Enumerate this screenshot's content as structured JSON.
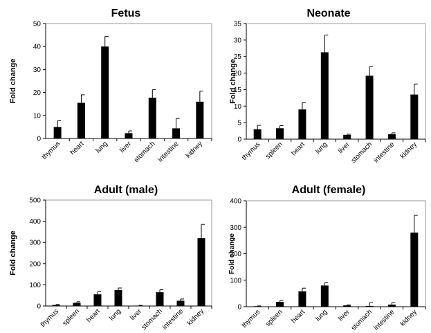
{
  "chart_data": [
    {
      "type": "bar",
      "title": "Fetus",
      "ylabel": "Fold change",
      "ylim": [
        0,
        50
      ],
      "yticks": [
        0,
        10,
        20,
        30,
        40,
        50
      ],
      "categories": [
        "thymus",
        "heart",
        "lung",
        "liver",
        "stomach",
        "intestine",
        "kidney"
      ],
      "values": [
        5,
        15.5,
        40,
        2.3,
        17.7,
        4.4,
        16
      ],
      "errors": [
        2.7,
        3.5,
        4.4,
        1,
        3.5,
        4.3,
        4.6
      ]
    },
    {
      "type": "bar",
      "title": "Neonate",
      "ylabel": "Fold change",
      "ylim": [
        0,
        35
      ],
      "yticks": [
        0,
        5,
        10,
        15,
        20,
        25,
        30,
        35
      ],
      "categories": [
        "thymus",
        "spleen",
        "heart",
        "lung",
        "liver",
        "stomach",
        "intestine",
        "kidney"
      ],
      "values": [
        3,
        3.3,
        9,
        26.3,
        1.3,
        19.2,
        1.5,
        13.5
      ],
      "errors": [
        1.2,
        0.8,
        2.1,
        5.2,
        0.2,
        2.8,
        0.4,
        3.2
      ]
    },
    {
      "type": "bar",
      "title": "Adult (male)",
      "ylabel": "Fold change",
      "ylim": [
        0,
        500
      ],
      "yticks": [
        0,
        100,
        200,
        300,
        400,
        500
      ],
      "categories": [
        "thymus",
        "spleen",
        "heart",
        "lung",
        "liver",
        "stomach",
        "intestine",
        "kidney"
      ],
      "values": [
        5,
        15,
        55,
        75,
        2,
        65,
        25,
        320
      ],
      "errors": [
        2,
        5,
        12,
        10,
        1,
        12,
        8,
        65
      ]
    },
    {
      "type": "bar",
      "title": "Adult  (female)",
      "ylabel": "Fold change",
      "ylim": [
        0,
        400
      ],
      "yticks": [
        0,
        100,
        200,
        300,
        400
      ],
      "categories": [
        "thymus",
        "spleen",
        "heart",
        "lung",
        "liver",
        "stomach",
        "intestine",
        "kidney"
      ],
      "values": [
        2,
        18,
        58,
        80,
        5,
        3,
        8,
        280
      ],
      "errors": [
        1,
        5,
        12,
        10,
        2,
        12,
        7,
        65
      ]
    }
  ]
}
